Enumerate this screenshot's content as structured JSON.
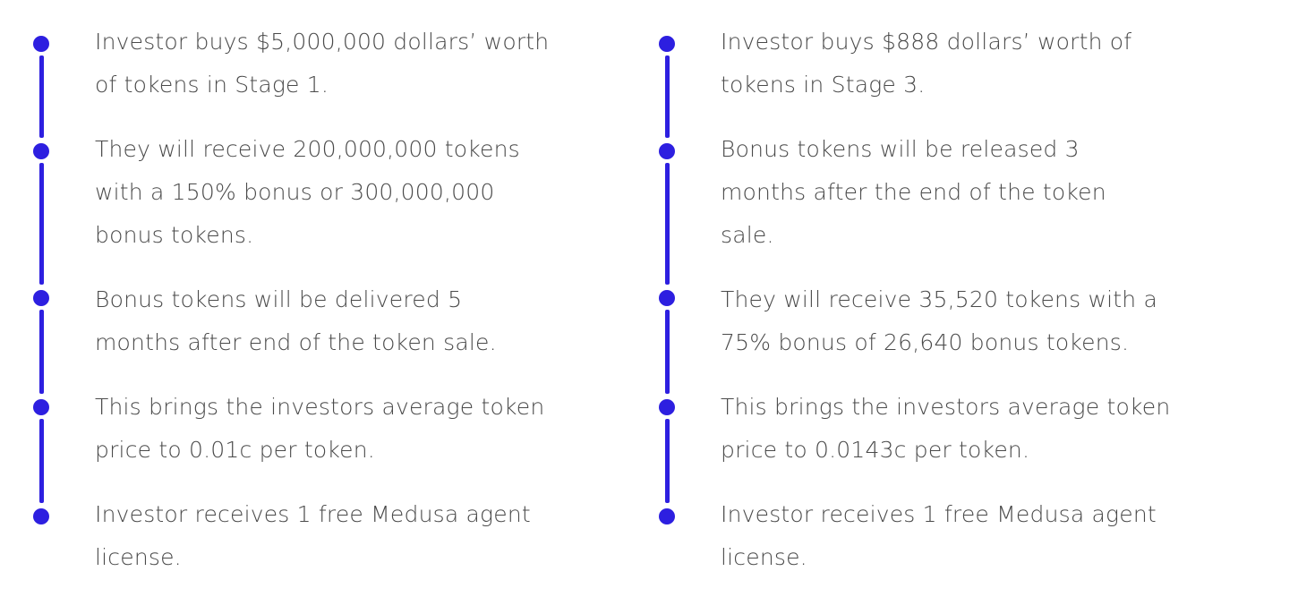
{
  "timelines": {
    "left": {
      "items": [
        {
          "lines": [
            "Investor buys $5,000,000 dollars’ worth",
            "of tokens in Stage 1."
          ]
        },
        {
          "lines": [
            "They will receive 200,000,000 tokens",
            "with a 150% bonus or 300,000,000",
            "bonus tokens."
          ]
        },
        {
          "lines": [
            "Bonus tokens will be delivered 5",
            "months after end of the token sale."
          ]
        },
        {
          "lines": [
            "This brings the investors average token",
            "price to 0.01c per token."
          ]
        },
        {
          "lines": [
            "Investor receives 1 free Medusa agent",
            "license."
          ]
        }
      ]
    },
    "right": {
      "items": [
        {
          "lines": [
            "Investor buys $888 dollars’ worth of",
            "tokens in Stage 3."
          ]
        },
        {
          "lines": [
            "Bonus tokens will be released 3",
            "months after the end of the token",
            "sale."
          ]
        },
        {
          "lines": [
            "They will receive 35,520 tokens with a",
            "75% bonus of 26,640 bonus tokens."
          ]
        },
        {
          "lines": [
            "This brings the investors average token",
            "price to 0.0143c per token."
          ]
        },
        {
          "lines": [
            "Investor receives 1 free Medusa agent",
            "license."
          ]
        }
      ]
    }
  },
  "colors": {
    "accent": "#2d1fe0",
    "text": "#4a4a4a"
  }
}
